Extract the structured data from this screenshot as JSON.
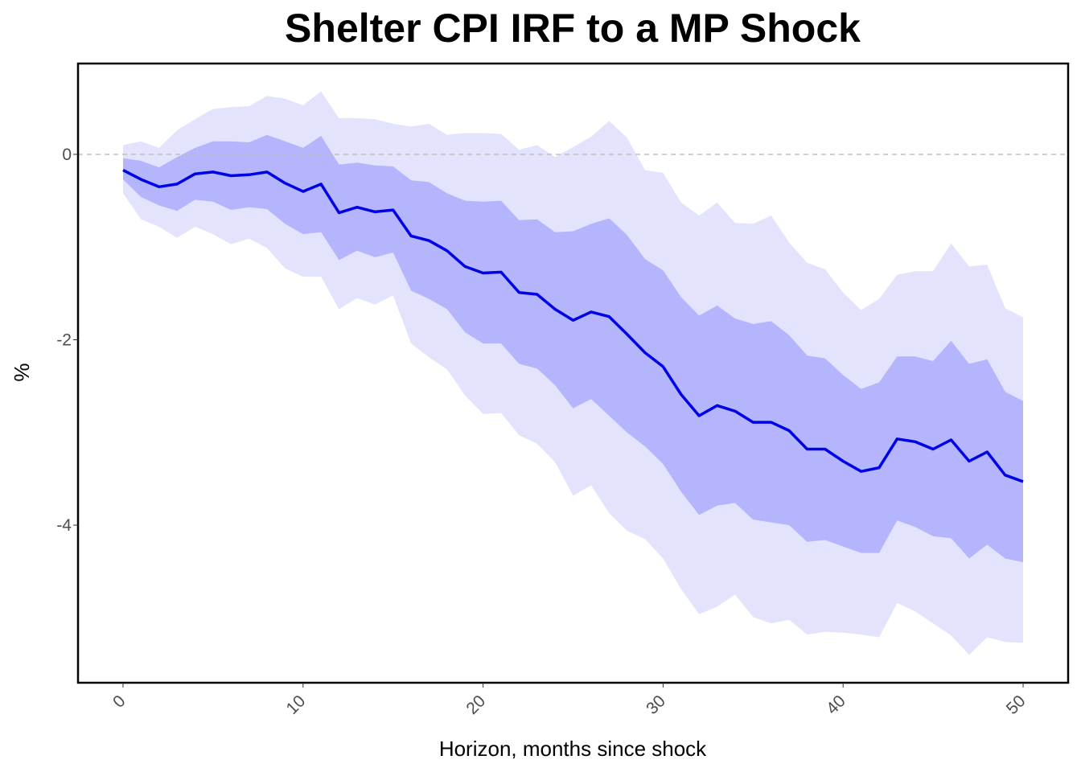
{
  "chart_data": {
    "type": "line",
    "title": "Shelter CPI IRF to a MP Shock",
    "xlabel": "Horizon, months since shock",
    "ylabel": "%",
    "xlim": [
      -2.5,
      52.5
    ],
    "ylim": [
      -5.7,
      0.98
    ],
    "x_ticks": [
      0,
      10,
      20,
      30,
      40,
      50
    ],
    "y_ticks": [
      0,
      -2,
      -4
    ],
    "reference_line": 0,
    "grid": false,
    "colors": {
      "irf_line": "#0000e6",
      "inner_band": "#b5b5fd",
      "outer_band": "#e3e3fd",
      "zero_line": "#bfbfbf",
      "frame": "#000000"
    },
    "x": [
      0,
      1,
      2,
      3,
      4,
      5,
      6,
      7,
      8,
      9,
      10,
      11,
      12,
      13,
      14,
      15,
      16,
      17,
      18,
      19,
      20,
      21,
      22,
      23,
      24,
      25,
      26,
      27,
      28,
      29,
      30,
      31,
      32,
      33,
      34,
      35,
      36,
      37,
      38,
      39,
      40,
      41,
      42,
      43,
      44,
      45,
      46,
      47,
      48,
      49,
      50
    ],
    "series": [
      {
        "values": [
          -0.17,
          -0.27,
          -0.35,
          -0.32,
          -0.21,
          -0.19,
          -0.23,
          -0.22,
          -0.19,
          -0.31,
          -0.4,
          -0.32,
          -0.63,
          -0.57,
          -0.62,
          -0.6,
          -0.88,
          -0.93,
          -1.04,
          -1.21,
          -1.28,
          -1.27,
          -1.49,
          -1.51,
          -1.67,
          -1.79,
          -1.7,
          -1.75,
          -1.94,
          -2.14,
          -2.29,
          -2.59,
          -2.82,
          -2.71,
          -2.77,
          -2.89,
          -2.89,
          -2.98,
          -3.18,
          -3.18,
          -3.31,
          -3.42,
          -3.38,
          -3.07,
          -3.1,
          -3.18,
          -3.08,
          -3.31,
          -3.21,
          -3.46,
          -3.53
        ]
      }
    ],
    "bands": [
      {
        "level": "outer",
        "lower": [
          -0.42,
          -0.7,
          -0.78,
          -0.9,
          -0.78,
          -0.86,
          -0.97,
          -0.91,
          -1.01,
          -1.23,
          -1.32,
          -1.32,
          -1.67,
          -1.55,
          -1.62,
          -1.52,
          -2.04,
          -2.19,
          -2.32,
          -2.6,
          -2.8,
          -2.79,
          -3.03,
          -3.12,
          -3.32,
          -3.68,
          -3.57,
          -3.87,
          -4.06,
          -4.15,
          -4.36,
          -4.69,
          -4.96,
          -4.88,
          -4.75,
          -4.99,
          -5.06,
          -5.02,
          -5.18,
          -5.15,
          -5.16,
          -5.18,
          -5.21,
          -4.84,
          -4.93,
          -5.06,
          -5.19,
          -5.4,
          -5.21,
          -5.26,
          -5.27
        ],
        "upper": [
          0.1,
          0.14,
          0.07,
          0.26,
          0.38,
          0.49,
          0.51,
          0.52,
          0.63,
          0.6,
          0.53,
          0.68,
          0.39,
          0.39,
          0.38,
          0.33,
          0.3,
          0.33,
          0.21,
          0.23,
          0.23,
          0.22,
          0.05,
          0.1,
          -0.03,
          0.08,
          0.19,
          0.36,
          0.18,
          -0.17,
          -0.2,
          -0.52,
          -0.66,
          -0.52,
          -0.74,
          -0.75,
          -0.66,
          -0.95,
          -1.17,
          -1.24,
          -1.49,
          -1.68,
          -1.56,
          -1.3,
          -1.26,
          -1.26,
          -0.96,
          -1.21,
          -1.19,
          -1.66,
          -1.76
        ]
      },
      {
        "level": "inner",
        "lower": [
          -0.27,
          -0.46,
          -0.55,
          -0.61,
          -0.49,
          -0.51,
          -0.6,
          -0.57,
          -0.59,
          -0.75,
          -0.86,
          -0.84,
          -1.14,
          -1.04,
          -1.11,
          -1.06,
          -1.47,
          -1.56,
          -1.67,
          -1.92,
          -2.04,
          -2.04,
          -2.26,
          -2.31,
          -2.49,
          -2.74,
          -2.64,
          -2.82,
          -3.0,
          -3.15,
          -3.34,
          -3.64,
          -3.89,
          -3.79,
          -3.76,
          -3.94,
          -3.97,
          -4.0,
          -4.18,
          -4.16,
          -4.23,
          -4.3,
          -4.3,
          -3.95,
          -4.02,
          -4.12,
          -4.14,
          -4.36,
          -4.21,
          -4.36,
          -4.4
        ],
        "upper": [
          -0.04,
          -0.07,
          -0.14,
          -0.03,
          0.07,
          0.14,
          0.14,
          0.13,
          0.21,
          0.14,
          0.07,
          0.2,
          -0.11,
          -0.09,
          -0.12,
          -0.13,
          -0.28,
          -0.3,
          -0.42,
          -0.5,
          -0.51,
          -0.5,
          -0.71,
          -0.7,
          -0.84,
          -0.83,
          -0.75,
          -0.69,
          -0.87,
          -1.13,
          -1.25,
          -1.54,
          -1.74,
          -1.63,
          -1.77,
          -1.83,
          -1.8,
          -1.95,
          -2.17,
          -2.2,
          -2.38,
          -2.53,
          -2.46,
          -2.18,
          -2.18,
          -2.23,
          -2.01,
          -2.26,
          -2.21,
          -2.56,
          -2.66
        ]
      }
    ]
  }
}
